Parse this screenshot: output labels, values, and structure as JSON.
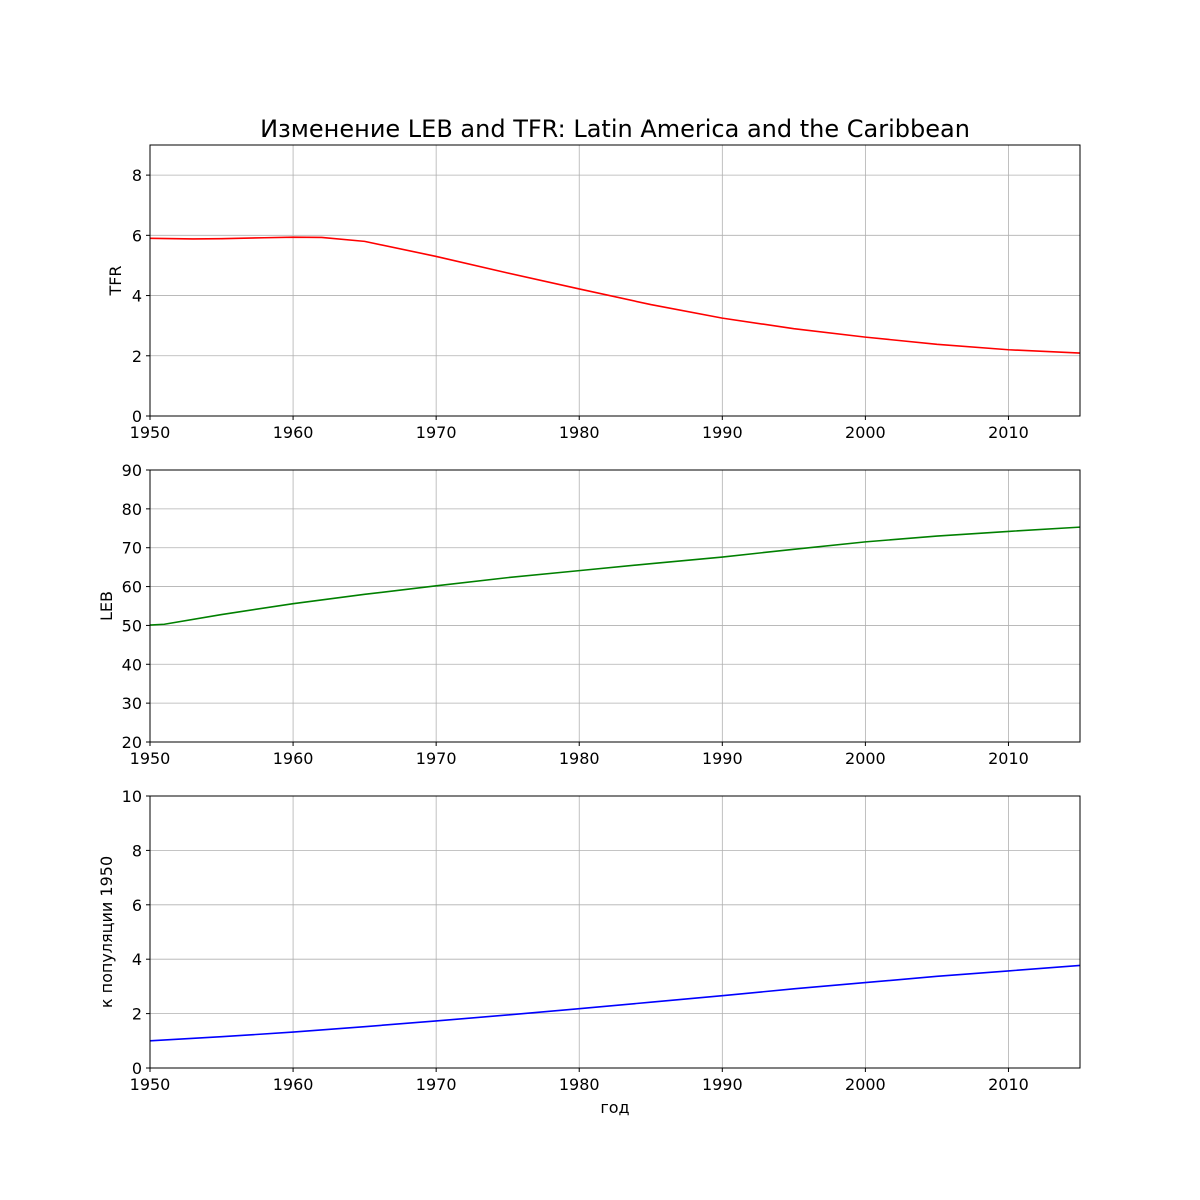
{
  "figure": {
    "title": "Изменение LEB and TFR: Latin America and the Caribbean"
  },
  "chart_data": [
    {
      "type": "line",
      "ylabel": "TFR",
      "xlabel": "",
      "xlim": [
        1950,
        2015
      ],
      "ylim": [
        0,
        9
      ],
      "xticks": [
        1950,
        1960,
        1970,
        1980,
        1990,
        2000,
        2010
      ],
      "yticks": [
        0,
        2,
        4,
        6,
        8
      ],
      "grid": true,
      "series": [
        {
          "color": "#ff0000",
          "x": [
            1950,
            1953,
            1955,
            1958,
            1960,
            1962,
            1965,
            1970,
            1975,
            1980,
            1985,
            1990,
            1995,
            2000,
            2005,
            2010,
            2015
          ],
          "y": [
            5.9,
            5.88,
            5.89,
            5.92,
            5.94,
            5.93,
            5.8,
            5.3,
            4.75,
            4.22,
            3.7,
            3.25,
            2.9,
            2.62,
            2.38,
            2.2,
            2.09
          ]
        }
      ]
    },
    {
      "type": "line",
      "ylabel": "LEB",
      "xlabel": "",
      "xlim": [
        1950,
        2015
      ],
      "ylim": [
        20,
        90
      ],
      "xticks": [
        1950,
        1960,
        1970,
        1980,
        1990,
        2000,
        2010
      ],
      "yticks": [
        20,
        30,
        40,
        50,
        60,
        70,
        80,
        90
      ],
      "grid": true,
      "series": [
        {
          "color": "#008000",
          "x": [
            1950,
            1951,
            1955,
            1960,
            1965,
            1970,
            1975,
            1980,
            1985,
            1990,
            1995,
            2000,
            2005,
            2010,
            2015
          ],
          "y": [
            50.1,
            50.3,
            52.8,
            55.6,
            58.0,
            60.2,
            62.3,
            64.1,
            65.9,
            67.6,
            69.6,
            71.5,
            73.0,
            74.2,
            75.3
          ]
        }
      ]
    },
    {
      "type": "line",
      "ylabel": "к популяции 1950",
      "xlabel": "год",
      "xlim": [
        1950,
        2015
      ],
      "ylim": [
        0,
        10
      ],
      "xticks": [
        1950,
        1960,
        1970,
        1980,
        1990,
        2000,
        2010
      ],
      "yticks": [
        0,
        2,
        4,
        6,
        8,
        10
      ],
      "grid": true,
      "series": [
        {
          "color": "#0000ff",
          "x": [
            1950,
            1955,
            1960,
            1965,
            1970,
            1975,
            1980,
            1985,
            1990,
            1995,
            2000,
            2005,
            2010,
            2015
          ],
          "y": [
            1.0,
            1.15,
            1.32,
            1.52,
            1.73,
            1.95,
            2.18,
            2.42,
            2.66,
            2.91,
            3.14,
            3.37,
            3.57,
            3.77
          ]
        }
      ]
    }
  ]
}
